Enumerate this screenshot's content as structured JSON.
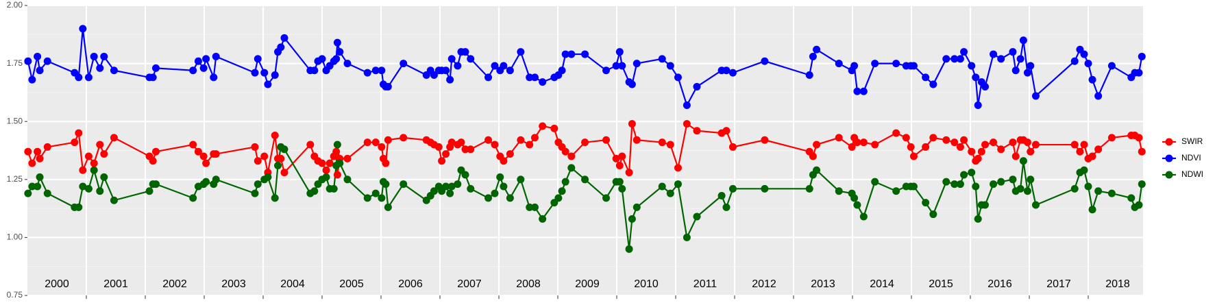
{
  "chart_data": {
    "type": "line",
    "x": [
      2000.01,
      2000.08,
      2000.17,
      2000.21,
      2000.34,
      2000.8,
      2000.87,
      2000.94,
      2001.04,
      2001.13,
      2001.23,
      2001.3,
      2001.47,
      2002.07,
      2002.13,
      2002.18,
      2002.81,
      2002.9,
      2002.99,
      2003.03,
      2003.16,
      2003.2,
      2003.86,
      2003.91,
      2004.02,
      2004.08,
      2004.2,
      2004.25,
      2004.3,
      2004.36,
      2004.8,
      2004.87,
      2004.93,
      2005.0,
      2005.07,
      2005.13,
      2005.2,
      2005.24,
      2005.26,
      2005.3,
      2005.43,
      2005.77,
      2005.91,
      2006.01,
      2006.04,
      2006.08,
      2006.12,
      2006.38,
      2006.77,
      2006.84,
      2006.9,
      2006.98,
      2007.03,
      2007.1,
      2007.17,
      2007.2,
      2007.3,
      2007.36,
      2007.43,
      2007.52,
      2007.82,
      2007.93,
      2008.02,
      2008.08,
      2008.19,
      2008.37,
      2008.52,
      2008.61,
      2008.74,
      2008.94,
      2009.01,
      2009.07,
      2009.13,
      2009.23,
      2009.46,
      2009.82,
      2009.99,
      2010.05,
      2010.09,
      2010.21,
      2010.26,
      2010.34,
      2010.77,
      2010.91,
      2011.04,
      2011.19,
      2011.36,
      2011.78,
      2011.86,
      2011.97,
      2012.51,
      2013.27,
      2013.33,
      2013.39,
      2013.77,
      2013.99,
      2014.03,
      2014.08,
      2014.19,
      2014.38,
      2014.74,
      2014.91,
      2014.99,
      2015.04,
      2015.24,
      2015.37,
      2015.59,
      2015.73,
      2015.83,
      2015.89,
      2016.02,
      2016.09,
      2016.13,
      2016.19,
      2016.25,
      2016.39,
      2016.52,
      2016.72,
      2016.77,
      2016.85,
      2016.9,
      2016.97,
      2017.02,
      2017.11,
      2017.77,
      2017.86,
      2017.93,
      2018.0,
      2018.07,
      2018.17,
      2018.4,
      2018.73,
      2018.79,
      2018.86,
      2018.91
    ],
    "series": [
      {
        "name": "SWIR",
        "color": "#ff0000",
        "values": [
          1.37,
          1.32,
          1.37,
          1.34,
          1.39,
          1.41,
          1.45,
          1.29,
          1.35,
          1.32,
          1.4,
          1.36,
          1.43,
          1.35,
          1.33,
          1.37,
          1.4,
          1.37,
          1.35,
          1.32,
          1.36,
          1.36,
          1.39,
          1.33,
          1.35,
          1.28,
          1.44,
          1.34,
          1.34,
          1.28,
          1.4,
          1.35,
          1.33,
          1.32,
          1.29,
          1.32,
          1.35,
          1.37,
          1.27,
          1.34,
          1.34,
          1.41,
          1.41,
          1.39,
          1.34,
          1.32,
          1.42,
          1.43,
          1.42,
          1.41,
          1.4,
          1.39,
          1.33,
          1.36,
          1.39,
          1.41,
          1.4,
          1.41,
          1.38,
          1.38,
          1.42,
          1.4,
          1.35,
          1.33,
          1.36,
          1.42,
          1.4,
          1.43,
          1.48,
          1.47,
          1.41,
          1.39,
          1.37,
          1.35,
          1.41,
          1.42,
          1.34,
          1.31,
          1.35,
          1.28,
          1.49,
          1.42,
          1.41,
          1.4,
          1.3,
          1.49,
          1.46,
          1.45,
          1.46,
          1.39,
          1.42,
          1.37,
          1.35,
          1.4,
          1.43,
          1.39,
          1.43,
          1.41,
          1.41,
          1.4,
          1.45,
          1.43,
          1.39,
          1.35,
          1.39,
          1.43,
          1.42,
          1.41,
          1.39,
          1.42,
          1.37,
          1.33,
          1.34,
          1.37,
          1.4,
          1.41,
          1.38,
          1.41,
          1.35,
          1.42,
          1.42,
          1.41,
          1.37,
          1.4,
          1.4,
          1.37,
          1.4,
          1.34,
          1.35,
          1.38,
          1.43,
          1.44,
          1.44,
          1.43,
          1.37
        ]
      },
      {
        "name": "NDVI",
        "color": "#0000ff",
        "values": [
          1.76,
          1.68,
          1.78,
          1.72,
          1.76,
          1.71,
          1.69,
          1.9,
          1.69,
          1.78,
          1.73,
          1.78,
          1.72,
          1.69,
          1.69,
          1.73,
          1.72,
          1.76,
          1.73,
          1.77,
          1.69,
          1.78,
          1.71,
          1.77,
          1.71,
          1.66,
          1.7,
          1.8,
          1.82,
          1.86,
          1.72,
          1.72,
          1.76,
          1.77,
          1.72,
          1.74,
          1.76,
          1.77,
          1.84,
          1.8,
          1.75,
          1.71,
          1.72,
          1.72,
          1.66,
          1.65,
          1.65,
          1.75,
          1.7,
          1.72,
          1.7,
          1.72,
          1.72,
          1.72,
          1.68,
          1.77,
          1.74,
          1.8,
          1.8,
          1.77,
          1.69,
          1.74,
          1.72,
          1.74,
          1.72,
          1.8,
          1.69,
          1.69,
          1.67,
          1.69,
          1.7,
          1.72,
          1.79,
          1.79,
          1.79,
          1.72,
          1.74,
          1.8,
          1.74,
          1.67,
          1.66,
          1.75,
          1.77,
          1.74,
          1.69,
          1.57,
          1.65,
          1.72,
          1.72,
          1.71,
          1.76,
          1.7,
          1.78,
          1.81,
          1.75,
          1.72,
          1.74,
          1.63,
          1.63,
          1.75,
          1.75,
          1.74,
          1.74,
          1.74,
          1.69,
          1.66,
          1.77,
          1.77,
          1.77,
          1.8,
          1.74,
          1.69,
          1.57,
          1.67,
          1.65,
          1.79,
          1.77,
          1.8,
          1.72,
          1.77,
          1.85,
          1.71,
          1.74,
          1.61,
          1.76,
          1.81,
          1.79,
          1.75,
          1.68,
          1.61,
          1.74,
          1.69,
          1.71,
          1.71,
          1.78
        ]
      },
      {
        "name": "NDWI",
        "color": "#006400",
        "values": [
          1.19,
          1.22,
          1.22,
          1.26,
          1.19,
          1.13,
          1.13,
          1.22,
          1.21,
          1.29,
          1.2,
          1.26,
          1.16,
          1.2,
          1.23,
          1.23,
          1.17,
          1.22,
          1.23,
          1.24,
          1.23,
          1.25,
          1.19,
          1.23,
          1.25,
          1.26,
          1.17,
          1.31,
          1.39,
          1.38,
          1.19,
          1.2,
          1.23,
          1.25,
          1.26,
          1.21,
          1.21,
          1.31,
          1.4,
          1.32,
          1.25,
          1.17,
          1.19,
          1.17,
          1.24,
          1.23,
          1.13,
          1.23,
          1.16,
          1.18,
          1.2,
          1.22,
          1.2,
          1.22,
          1.19,
          1.22,
          1.23,
          1.29,
          1.27,
          1.21,
          1.17,
          1.19,
          1.26,
          1.22,
          1.17,
          1.25,
          1.13,
          1.13,
          1.08,
          1.15,
          1.17,
          1.2,
          1.24,
          1.3,
          1.25,
          1.17,
          1.24,
          1.24,
          1.21,
          0.95,
          1.08,
          1.13,
          1.22,
          1.19,
          1.23,
          1.0,
          1.09,
          1.18,
          1.13,
          1.21,
          1.21,
          1.21,
          1.27,
          1.29,
          1.2,
          1.19,
          1.17,
          1.14,
          1.09,
          1.24,
          1.2,
          1.22,
          1.22,
          1.22,
          1.15,
          1.1,
          1.24,
          1.23,
          1.23,
          1.27,
          1.28,
          1.22,
          1.08,
          1.14,
          1.14,
          1.23,
          1.24,
          1.25,
          1.2,
          1.21,
          1.33,
          1.2,
          1.25,
          1.14,
          1.21,
          1.28,
          1.29,
          1.22,
          1.12,
          1.2,
          1.19,
          1.17,
          1.13,
          1.14,
          1.23
        ]
      }
    ],
    "xlim": [
      2000,
      2018.93
    ],
    "xticks": [
      {
        "value": 2000.5,
        "label": "2000"
      },
      {
        "value": 2001.5,
        "label": "2001"
      },
      {
        "value": 2002.5,
        "label": "2002"
      },
      {
        "value": 2003.5,
        "label": "2003"
      },
      {
        "value": 2004.5,
        "label": "2004"
      },
      {
        "value": 2005.5,
        "label": "2005"
      },
      {
        "value": 2006.5,
        "label": "2006"
      },
      {
        "value": 2007.5,
        "label": "2007"
      },
      {
        "value": 2008.5,
        "label": "2008"
      },
      {
        "value": 2009.5,
        "label": "2009"
      },
      {
        "value": 2010.5,
        "label": "2010"
      },
      {
        "value": 2011.5,
        "label": "2011"
      },
      {
        "value": 2012.5,
        "label": "2012"
      },
      {
        "value": 2013.5,
        "label": "2013"
      },
      {
        "value": 2014.5,
        "label": "2014"
      },
      {
        "value": 2015.5,
        "label": "2015"
      },
      {
        "value": 2016.5,
        "label": "2016"
      },
      {
        "value": 2017.5,
        "label": "2017"
      },
      {
        "value": 2018.5,
        "label": "2018"
      }
    ],
    "xgrid": [
      2001,
      2002,
      2003,
      2004,
      2005,
      2006,
      2007,
      2008,
      2009,
      2010,
      2011,
      2012,
      2013,
      2014,
      2015,
      2016,
      2017,
      2018
    ],
    "ylim": [
      0.75,
      2.0
    ],
    "yticks": [
      {
        "value": 0.75,
        "label": "0.75"
      },
      {
        "value": 1,
        "label": "1.00"
      },
      {
        "value": 1.25,
        "label": "1.25"
      },
      {
        "value": 1.5,
        "label": "1.50"
      },
      {
        "value": 1.75,
        "label": "1.75"
      },
      {
        "value": 2,
        "label": "2.00"
      }
    ],
    "grid": true,
    "legend": "right"
  }
}
